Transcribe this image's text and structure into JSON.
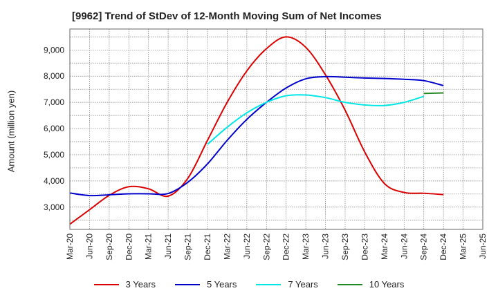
{
  "chart_data": {
    "type": "line",
    "title": "[9962]  Trend of StDev of 12-Month Moving Sum of Net Incomes",
    "xlabel": "",
    "ylabel": "Amount (million yen)",
    "x_ticks": [
      "Mar-20",
      "Jun-20",
      "Sep-20",
      "Dec-20",
      "Mar-21",
      "Jun-21",
      "Sep-21",
      "Dec-21",
      "Mar-22",
      "Jun-22",
      "Sep-22",
      "Dec-22",
      "Mar-23",
      "Jun-23",
      "Sep-23",
      "Dec-23",
      "Mar-24",
      "Jun-24",
      "Sep-24",
      "Dec-24",
      "Mar-25",
      "Jun-25"
    ],
    "y_ticks": [
      3000,
      4000,
      5000,
      6000,
      7000,
      8000,
      9000
    ],
    "ylim": [
      2150,
      9800
    ],
    "grid": true,
    "legend_position": "bottom",
    "series": [
      {
        "name": "3 Years",
        "color": "#dd0000",
        "start_index": 0,
        "values": [
          2350,
          2900,
          3450,
          3780,
          3700,
          3420,
          4100,
          5550,
          7000,
          8200,
          9050,
          9500,
          9100,
          8050,
          6700,
          5100,
          3900,
          3560,
          3530,
          3480
        ]
      },
      {
        "name": "5 Years",
        "color": "#0000cc",
        "start_index": 0,
        "values": [
          3540,
          3440,
          3470,
          3510,
          3510,
          3520,
          3950,
          4650,
          5550,
          6350,
          7000,
          7550,
          7900,
          7980,
          7960,
          7930,
          7910,
          7880,
          7830,
          7640
        ]
      },
      {
        "name": "7 Years",
        "color": "#00e5e5",
        "start_index": 7,
        "values": [
          5400,
          6050,
          6600,
          7000,
          7250,
          7280,
          7180,
          7000,
          6900,
          6880,
          7000,
          7230
        ]
      },
      {
        "name": "10 Years",
        "color": "#228822",
        "start_index": 18,
        "values": [
          7340,
          7360
        ]
      }
    ]
  }
}
